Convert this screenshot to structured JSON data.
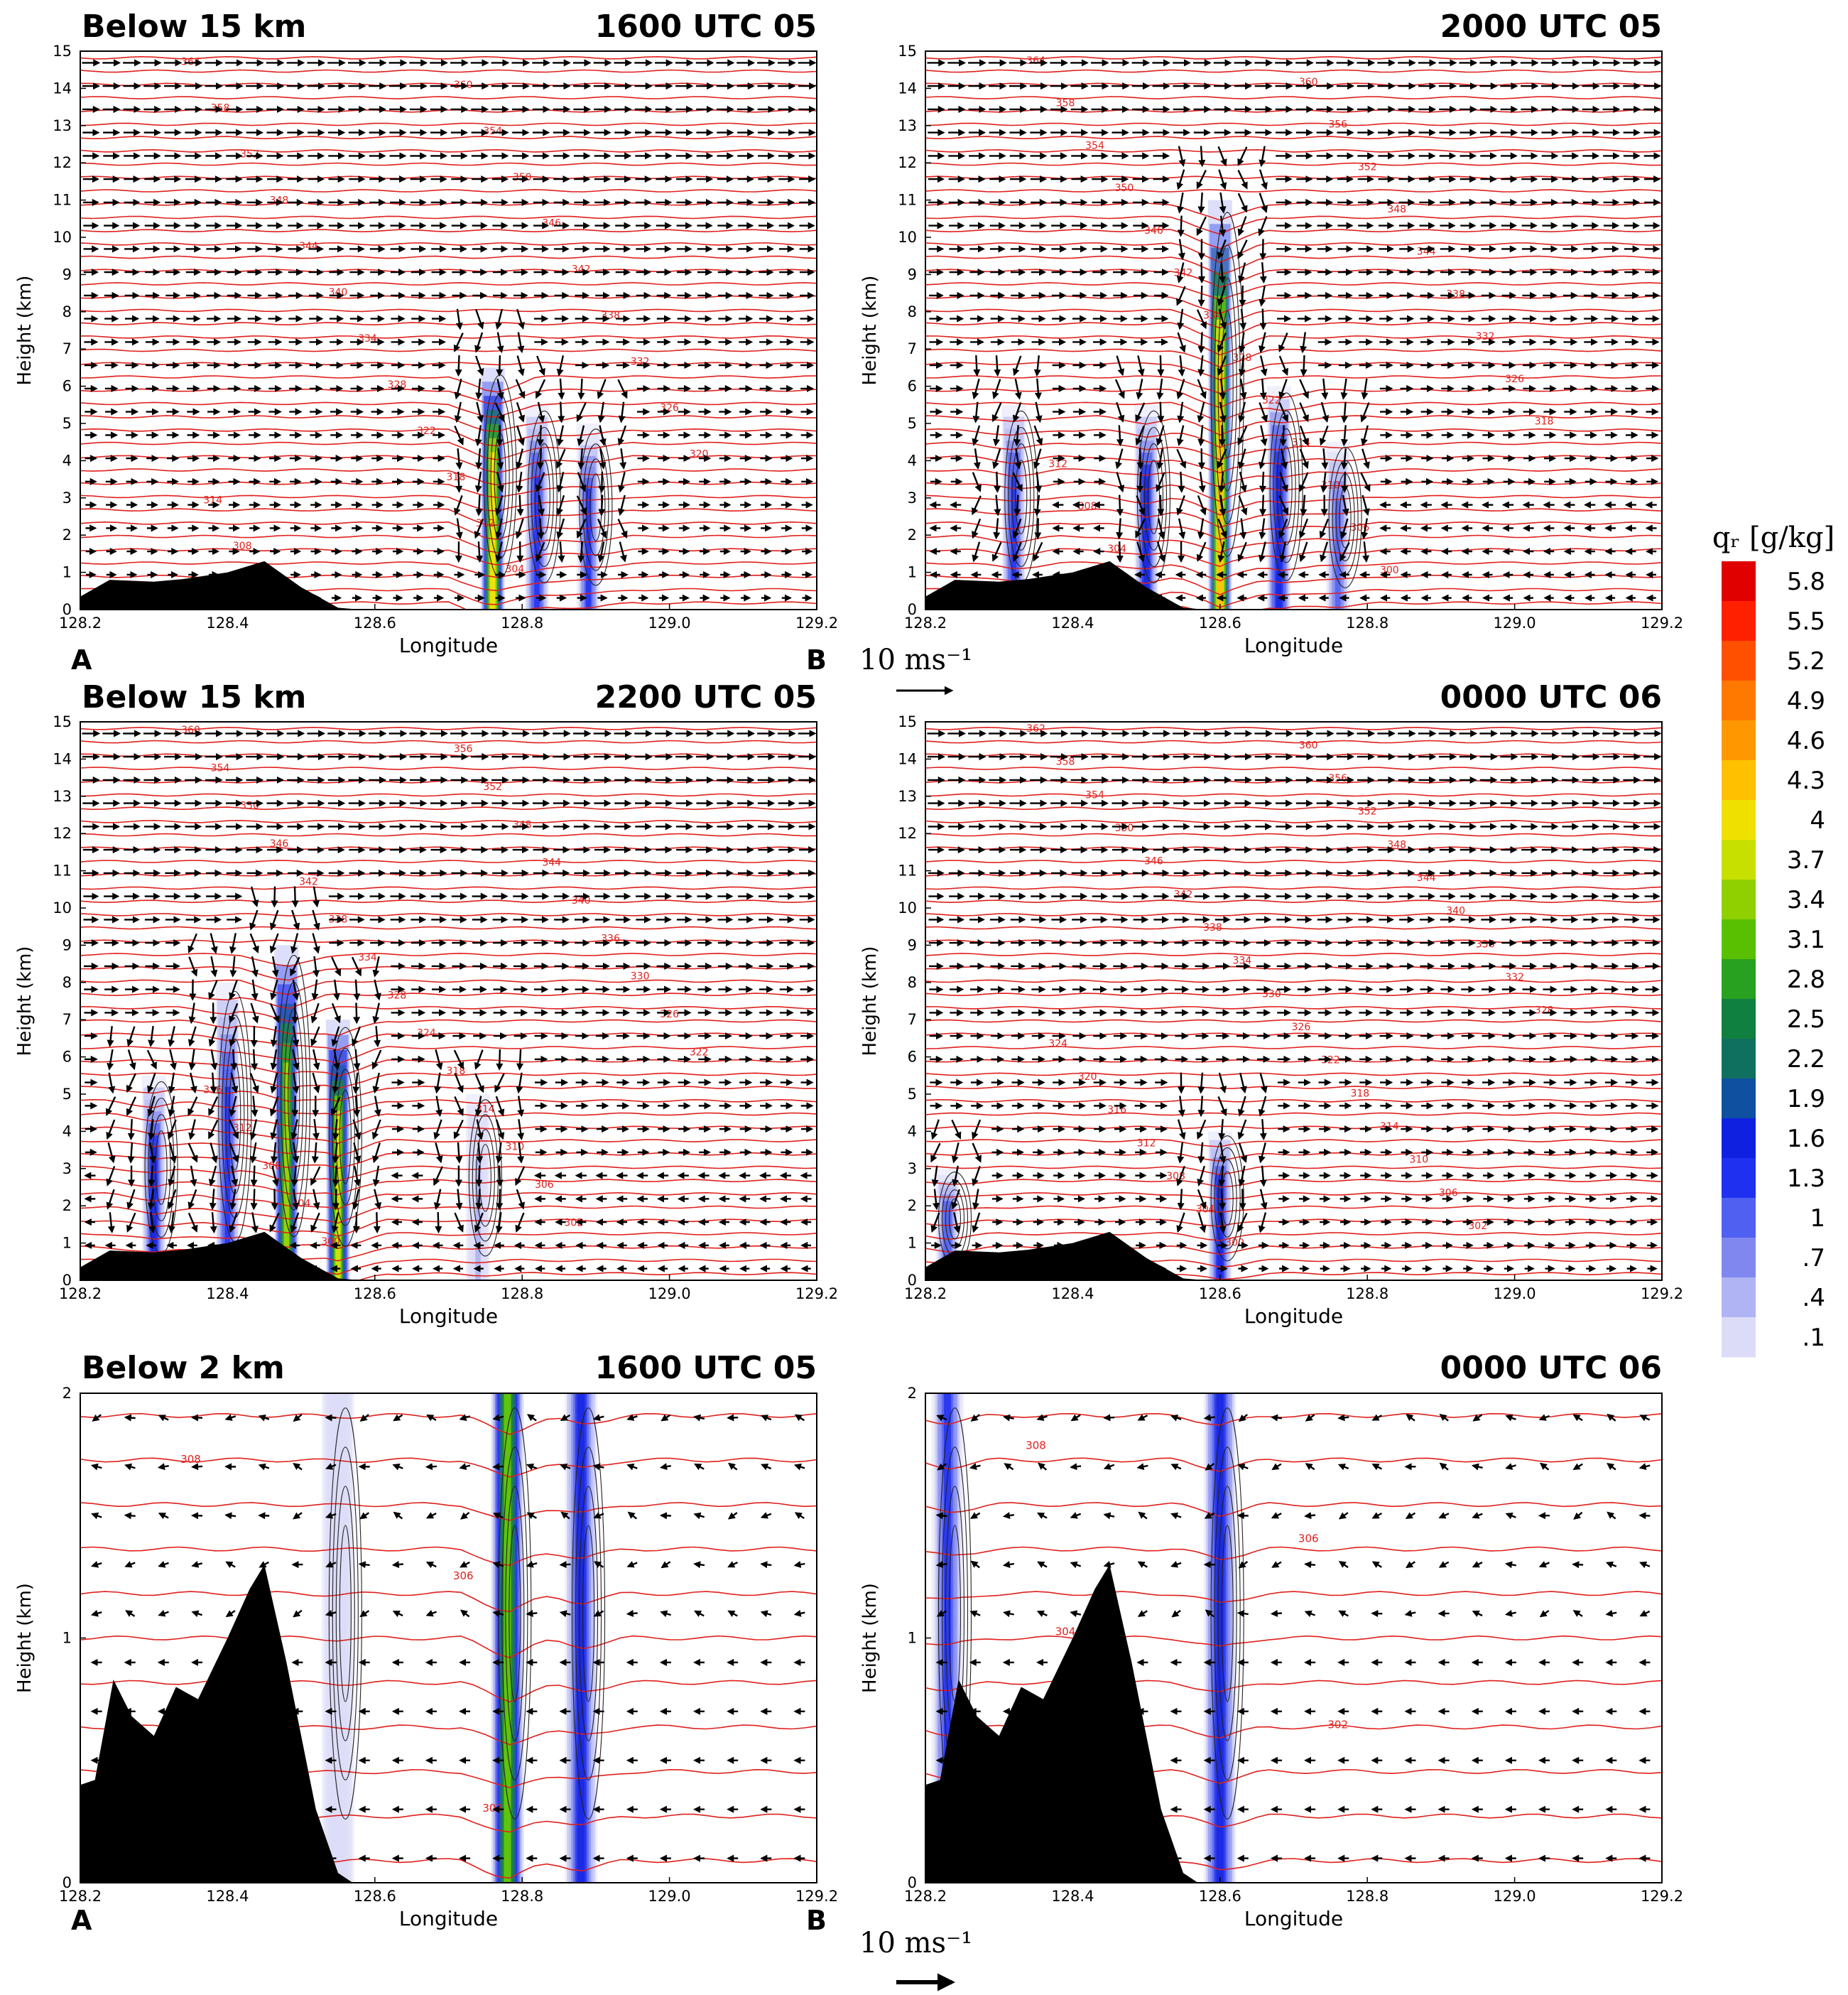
{
  "figure": {
    "vector_ref_label": "10 ms⁻¹",
    "colorbar": {
      "title": "qᵣ [g/kg]",
      "tick_labels": [
        "5.8",
        "5.5",
        "5.2",
        "4.9",
        "4.6",
        "4.3",
        "4",
        "3.7",
        "3.4",
        "3.1",
        "2.8",
        "2.5",
        "2.2",
        "1.9",
        "1.6",
        "1.3",
        "1",
        ".7",
        ".4",
        ".1"
      ],
      "colors": [
        "#e00000",
        "#ff2000",
        "#ff5000",
        "#ff7800",
        "#ff9800",
        "#ffc000",
        "#f0e000",
        "#c8e000",
        "#90d000",
        "#58c000",
        "#28a020",
        "#108040",
        "#107060",
        "#1050a0",
        "#1020e0",
        "#2030f0",
        "#5060f0",
        "#8088f0",
        "#b0b4f4",
        "#dcdcf8"
      ]
    },
    "section_labels": {
      "start": "A",
      "end": "B"
    }
  },
  "chart_data": [
    {
      "type": "cross-section",
      "panel": "top-left",
      "title": "Below 15 km",
      "time": "1600 UTC 05",
      "xlabel": "Longitude",
      "ylabel": "Height (km)",
      "xlim": [
        128.2,
        129.2
      ],
      "ylim": [
        0,
        15
      ],
      "xticks": [
        "128.2",
        "128.4",
        "128.6",
        "128.8",
        "129.0",
        "129.2"
      ],
      "yticks": [
        "0",
        "1",
        "2",
        "3",
        "4",
        "5",
        "6",
        "7",
        "8",
        "9",
        "10",
        "11",
        "12",
        "13",
        "14",
        "15"
      ],
      "terrain": [
        [
          128.2,
          0.35
        ],
        [
          128.24,
          0.8
        ],
        [
          128.3,
          0.75
        ],
        [
          128.34,
          0.82
        ],
        [
          128.4,
          1.0
        ],
        [
          128.45,
          1.3
        ],
        [
          128.5,
          0.6
        ],
        [
          128.55,
          0.05
        ],
        [
          128.58,
          0
        ]
      ],
      "theta_label_samples": [
        "364",
        "360",
        "358",
        "354",
        "352",
        "350",
        "348",
        "346",
        "344",
        "342",
        "340",
        "338",
        "334",
        "332",
        "328",
        "326",
        "322",
        "320",
        "318",
        "314",
        "312",
        "308",
        "304"
      ],
      "qr_columns": [
        {
          "lon": 128.76,
          "top": 6.5,
          "peak": 4.2
        },
        {
          "lon": 128.82,
          "top": 5.5,
          "peak": 1.5
        },
        {
          "lon": 128.89,
          "top": 5.0,
          "peak": 1.3
        }
      ]
    },
    {
      "type": "cross-section",
      "panel": "top-right",
      "title": "",
      "time": "2000 UTC 05",
      "xlabel": "Longitude",
      "ylabel": "Height (km)",
      "xlim": [
        128.2,
        129.2
      ],
      "ylim": [
        0,
        15
      ],
      "xticks": [
        "128.2",
        "128.4",
        "128.6",
        "128.8",
        "129.0",
        "129.2"
      ],
      "yticks": [
        "0",
        "1",
        "2",
        "3",
        "4",
        "5",
        "6",
        "7",
        "8",
        "9",
        "10",
        "11",
        "12",
        "13",
        "14",
        "15"
      ],
      "terrain": [
        [
          128.2,
          0.35
        ],
        [
          128.24,
          0.8
        ],
        [
          128.3,
          0.75
        ],
        [
          128.34,
          0.82
        ],
        [
          128.4,
          1.0
        ],
        [
          128.45,
          1.3
        ],
        [
          128.5,
          0.6
        ],
        [
          128.55,
          0.05
        ],
        [
          128.58,
          0
        ]
      ],
      "theta_label_samples": [
        "364",
        "360",
        "358",
        "356",
        "354",
        "352",
        "350",
        "348",
        "346",
        "344",
        "342",
        "338",
        "334",
        "332",
        "328",
        "326",
        "322",
        "318",
        "314",
        "312",
        "310",
        "308",
        "306",
        "304",
        "300"
      ],
      "qr_columns": [
        {
          "lon": 128.32,
          "top": 5.5,
          "peak": 1.5
        },
        {
          "lon": 128.5,
          "top": 5.5,
          "peak": 1.6
        },
        {
          "lon": 128.6,
          "top": 11.0,
          "peak": 4.4
        },
        {
          "lon": 128.68,
          "top": 6.0,
          "peak": 1.8
        },
        {
          "lon": 128.76,
          "top": 4.5,
          "peak": 1.0
        }
      ]
    },
    {
      "type": "cross-section",
      "panel": "middle-left",
      "title": "Below 15 km",
      "time": "2200 UTC 05",
      "xlabel": "Longitude",
      "ylabel": "Height (km)",
      "xlim": [
        128.2,
        129.2
      ],
      "ylim": [
        0,
        15
      ],
      "xticks": [
        "128.2",
        "128.4",
        "128.6",
        "128.8",
        "129.0",
        "129.2"
      ],
      "yticks": [
        "0",
        "1",
        "2",
        "3",
        "4",
        "5",
        "6",
        "7",
        "8",
        "9",
        "10",
        "11",
        "12",
        "13",
        "14",
        "15"
      ],
      "terrain": [
        [
          128.2,
          0.35
        ],
        [
          128.24,
          0.8
        ],
        [
          128.3,
          0.75
        ],
        [
          128.34,
          0.82
        ],
        [
          128.4,
          1.0
        ],
        [
          128.45,
          1.3
        ],
        [
          128.5,
          0.6
        ],
        [
          128.55,
          0.05
        ],
        [
          128.58,
          0
        ]
      ],
      "theta_label_samples": [
        "360",
        "356",
        "354",
        "352",
        "350",
        "348",
        "346",
        "344",
        "342",
        "340",
        "338",
        "336",
        "334",
        "330",
        "328",
        "326",
        "324",
        "322",
        "318",
        "316",
        "314",
        "312",
        "310",
        "308",
        "306",
        "304",
        "302",
        "300"
      ],
      "qr_columns": [
        {
          "lon": 128.3,
          "top": 5.5,
          "peak": 1.6
        },
        {
          "lon": 128.4,
          "top": 8.0,
          "peak": 1.5
        },
        {
          "lon": 128.48,
          "top": 9.0,
          "peak": 3.5
        },
        {
          "lon": 128.55,
          "top": 7.0,
          "peak": 3.8
        },
        {
          "lon": 128.74,
          "top": 5.0,
          "peak": 0.4
        }
      ]
    },
    {
      "type": "cross-section",
      "panel": "middle-right",
      "title": "",
      "time": "0000 UTC 06",
      "xlabel": "Longitude",
      "ylabel": "Height (km)",
      "xlim": [
        128.2,
        129.2
      ],
      "ylim": [
        0,
        15
      ],
      "xticks": [
        "128.2",
        "128.4",
        "128.6",
        "128.8",
        "129.0",
        "129.2"
      ],
      "yticks": [
        "0",
        "1",
        "2",
        "3",
        "4",
        "5",
        "6",
        "7",
        "8",
        "9",
        "10",
        "11",
        "12",
        "13",
        "14",
        "15"
      ],
      "terrain": [
        [
          128.2,
          0.35
        ],
        [
          128.24,
          0.8
        ],
        [
          128.3,
          0.75
        ],
        [
          128.34,
          0.82
        ],
        [
          128.4,
          1.0
        ],
        [
          128.45,
          1.3
        ],
        [
          128.5,
          0.6
        ],
        [
          128.55,
          0.05
        ],
        [
          128.58,
          0
        ]
      ],
      "theta_label_samples": [
        "362",
        "360",
        "358",
        "356",
        "354",
        "352",
        "350",
        "348",
        "346",
        "344",
        "342",
        "340",
        "338",
        "336",
        "334",
        "332",
        "330",
        "328",
        "326",
        "324",
        "322",
        "320",
        "318",
        "316",
        "314",
        "312",
        "310",
        "308",
        "306",
        "304",
        "302",
        "300"
      ],
      "qr_columns": [
        {
          "lon": 128.23,
          "top": 3.0,
          "peak": 1.2
        },
        {
          "lon": 128.6,
          "top": 4.0,
          "peak": 1.6
        }
      ]
    },
    {
      "type": "cross-section",
      "panel": "bottom-left",
      "title": "Below 2 km",
      "time": "1600 UTC 05",
      "xlabel": "Longitude",
      "ylabel": "Height (km)",
      "xlim": [
        128.2,
        129.2
      ],
      "ylim": [
        0,
        2
      ],
      "xticks": [
        "128.2",
        "128.4",
        "128.6",
        "128.8",
        "129.0",
        "129.2"
      ],
      "yticks": [
        "0",
        "1",
        "2"
      ],
      "terrain": [
        [
          128.2,
          0.4
        ],
        [
          128.22,
          0.42
        ],
        [
          128.245,
          0.83
        ],
        [
          128.27,
          0.68
        ],
        [
          128.3,
          0.6
        ],
        [
          128.33,
          0.8
        ],
        [
          128.36,
          0.75
        ],
        [
          128.4,
          1.0
        ],
        [
          128.43,
          1.2
        ],
        [
          128.45,
          1.3
        ],
        [
          128.48,
          0.9
        ],
        [
          128.52,
          0.3
        ],
        [
          128.55,
          0.04
        ],
        [
          128.57,
          0
        ]
      ],
      "theta_label_samples": [
        "308",
        "306",
        "304",
        "302"
      ],
      "qr_columns": [
        {
          "lon": 128.55,
          "top": 2.0,
          "peak": 0.2
        },
        {
          "lon": 128.78,
          "top": 2.0,
          "peak": 3.2
        },
        {
          "lon": 128.88,
          "top": 2.0,
          "peak": 1.6
        }
      ]
    },
    {
      "type": "cross-section",
      "panel": "bottom-right",
      "title": "",
      "time": "0000 UTC 06",
      "xlabel": "Longitude",
      "ylabel": "Height (km)",
      "xlim": [
        128.2,
        129.2
      ],
      "ylim": [
        0,
        2
      ],
      "xticks": [
        "128.2",
        "128.4",
        "128.6",
        "128.8",
        "129.0",
        "129.2"
      ],
      "yticks": [
        "0",
        "1",
        "2"
      ],
      "terrain": [
        [
          128.2,
          0.4
        ],
        [
          128.22,
          0.42
        ],
        [
          128.245,
          0.83
        ],
        [
          128.27,
          0.68
        ],
        [
          128.3,
          0.6
        ],
        [
          128.33,
          0.8
        ],
        [
          128.36,
          0.75
        ],
        [
          128.4,
          1.0
        ],
        [
          128.43,
          1.2
        ],
        [
          128.45,
          1.3
        ],
        [
          128.48,
          0.9
        ],
        [
          128.52,
          0.3
        ],
        [
          128.55,
          0.04
        ],
        [
          128.57,
          0
        ]
      ],
      "theta_label_samples": [
        "308",
        "306",
        "304",
        "302",
        "300"
      ],
      "qr_columns": [
        {
          "lon": 128.23,
          "top": 2.0,
          "peak": 1.3
        },
        {
          "lon": 128.6,
          "top": 2.0,
          "peak": 1.7
        }
      ]
    }
  ]
}
